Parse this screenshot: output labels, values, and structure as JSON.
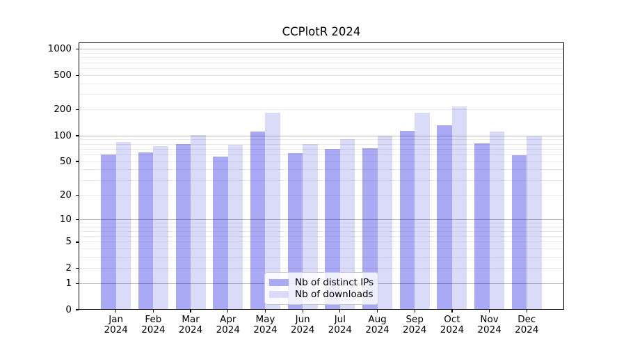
{
  "chart_data": {
    "type": "bar",
    "title": "CCPlotR 2024",
    "categories": [
      "Jan",
      "Feb",
      "Mar",
      "Apr",
      "May",
      "Jun",
      "Jul",
      "Aug",
      "Sep",
      "Oct",
      "Nov",
      "Dec"
    ],
    "category_year": "2024",
    "series": [
      {
        "name": "Nb of distinct IPs",
        "color": "#a9a9f6",
        "values": [
          60,
          64,
          80,
          57,
          113,
          63,
          70,
          72,
          115,
          133,
          81,
          59
        ]
      },
      {
        "name": "Nb of downloads",
        "color": "#dadaf9",
        "values": [
          85,
          75,
          103,
          78,
          186,
          80,
          91,
          100,
          186,
          219,
          113,
          99
        ]
      }
    ],
    "yscale": "log1p",
    "yticks": [
      0,
      1,
      2,
      5,
      10,
      20,
      50,
      100,
      200,
      500,
      1000
    ],
    "ylim": [
      0,
      1200
    ],
    "xlabel": "",
    "ylabel": "",
    "grid": "major dark gray at 1/10/100/1000, minor light gray at 2-9 per decade",
    "legend_position": "inside lower center",
    "colors": {
      "major_grid": "#bdbdbd",
      "minor_grid": "#ebebeb",
      "axis": "#000000",
      "background": "#ffffff",
      "legend_border": "#cccccc"
    }
  }
}
